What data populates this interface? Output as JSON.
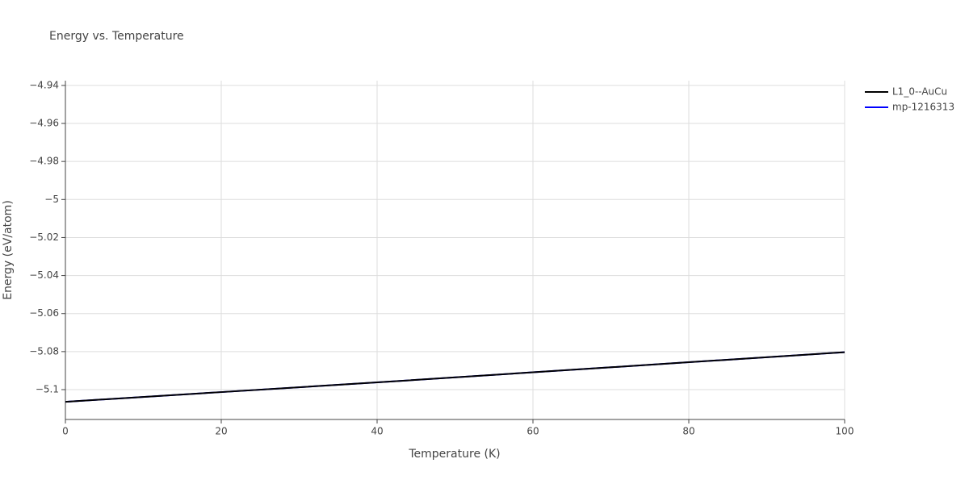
{
  "chart_data": {
    "type": "line",
    "title": "Energy vs. Temperature",
    "x_label": "Temperature (K)",
    "y_label": "Energy (eV/atom)",
    "x": [
      0,
      20,
      40,
      60,
      80,
      100
    ],
    "series": [
      {
        "name": "mp-1216313",
        "color": "#0000ff",
        "values": [
          -5.1064,
          -5.1013,
          -5.0962,
          -5.0909,
          -5.0856,
          -5.0803
        ]
      },
      {
        "name": "L1_0--AuCu",
        "color": "#000000",
        "values": [
          -5.1064,
          -5.1013,
          -5.0962,
          -5.0909,
          -5.0856,
          -5.0803
        ]
      }
    ],
    "legend_order": [
      1,
      0
    ],
    "xlim": [
      0,
      100
    ],
    "xticks": [
      0,
      20,
      40,
      60,
      80,
      100
    ],
    "ylim": [
      -5.1157,
      -4.9375
    ],
    "yticks": [
      {
        "value": -4.94,
        "label": "−4.94"
      },
      {
        "value": -4.96,
        "label": "−4.96"
      },
      {
        "value": -4.98,
        "label": "−4.98"
      },
      {
        "value": -5,
        "label": "−5"
      },
      {
        "value": -5.02,
        "label": "−5.02"
      },
      {
        "value": -5.04,
        "label": "−5.04"
      },
      {
        "value": -5.06,
        "label": "−5.06"
      },
      {
        "value": -5.08,
        "label": "−5.08"
      },
      {
        "value": -5.1,
        "label": "−5.1"
      }
    ],
    "grid": true,
    "legend": "outside-top-right"
  }
}
